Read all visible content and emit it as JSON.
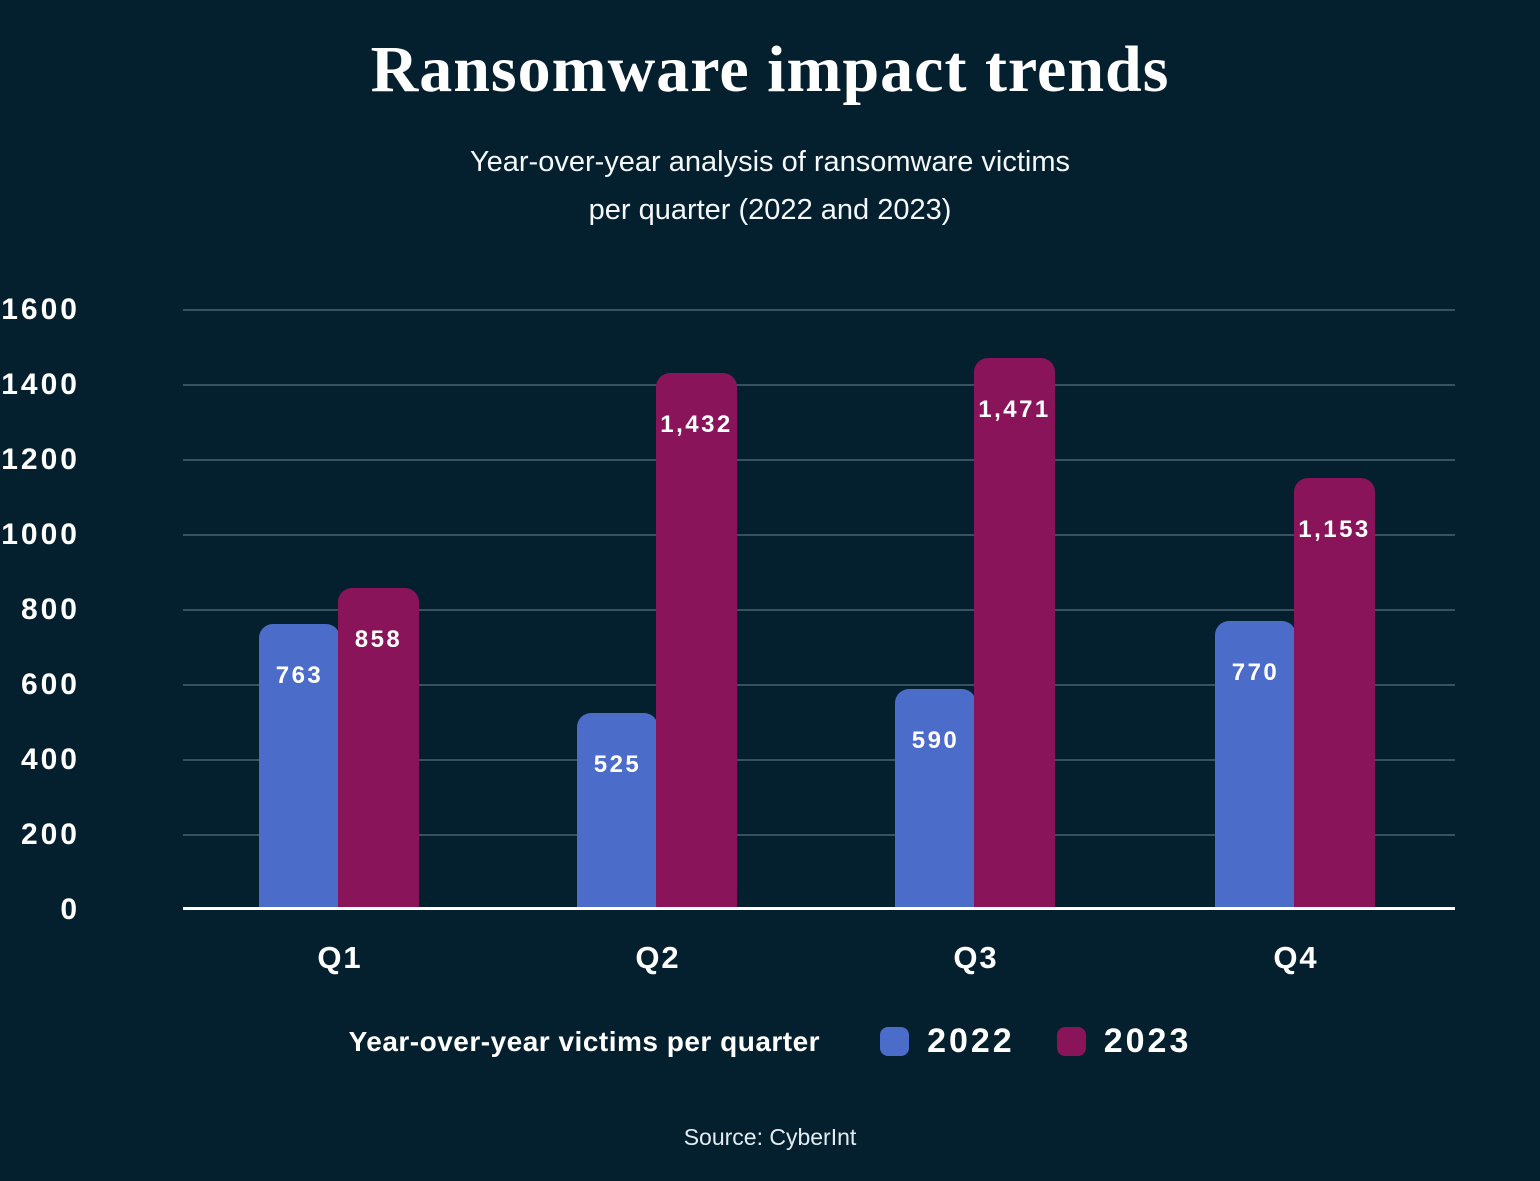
{
  "header": {
    "title": "Ransomware impact trends",
    "subtitle_line1": "Year-over-year analysis of ransomware victims",
    "subtitle_line2": "per quarter (2022 and 2023)"
  },
  "chart_data": {
    "type": "bar",
    "title": "Ransomware impact trends",
    "subtitle": "Year-over-year analysis of ransomware victims per quarter (2022 and 2023)",
    "categories": [
      "Q1",
      "Q2",
      "Q3",
      "Q4"
    ],
    "series": [
      {
        "name": "2022",
        "color": "#4b6cc9",
        "values": [
          763,
          525,
          590,
          770
        ]
      },
      {
        "name": "2023",
        "color": "#89145a",
        "values": [
          858,
          1432,
          1471,
          1153
        ]
      }
    ],
    "ylim": [
      0,
      1600
    ],
    "ytick_step": 200,
    "yticks": [
      0,
      200,
      400,
      600,
      800,
      1000,
      1200,
      1400,
      1600
    ],
    "grid": true,
    "legend_label": "Year-over-year victims per quarter",
    "legend_position": "bottom"
  },
  "colors": {
    "background": "#04202f",
    "gridline": "rgba(205,225,235,0.26)",
    "axis": "#ffffff",
    "text": "#ffffff"
  },
  "footer": {
    "source": "Source: CyberInt"
  }
}
